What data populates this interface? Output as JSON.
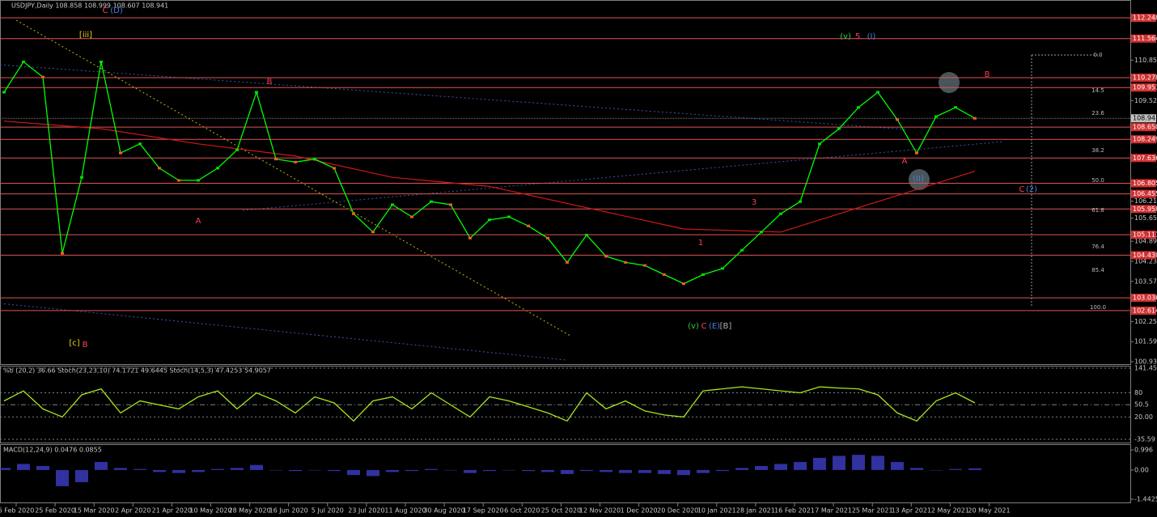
{
  "header": {
    "title": "USDJPY,Daily  108.858 108.999 108.607 108.941"
  },
  "price_chart": {
    "ylim": [
      100.855,
      112.834
    ],
    "ticks": [
      110.855,
      109.525,
      106.215,
      105.655,
      104.895,
      104.235,
      103.575,
      102.255,
      101.595,
      100.935
    ],
    "levels": [
      112.248,
      111.564,
      110.278,
      109.953,
      {
        "value": 108.65,
        "label": "108.650"
      },
      108.249,
      107.636,
      106.805,
      106.455,
      105.958,
      105.111,
      104.438,
      103.036,
      102.614
    ],
    "current": 108.941,
    "close": [
      109.8,
      110.8,
      110.3,
      104.5,
      107,
      110.8,
      107.8,
      108.1,
      107.3,
      106.9,
      106.9,
      107.3,
      107.9,
      109.8,
      107.6,
      107.5,
      107.6,
      107.3,
      105.8,
      105.2,
      106.1,
      105.7,
      106.2,
      106.1,
      105.0,
      105.6,
      105.7,
      105.4,
      105.0,
      104.2,
      105.1,
      104.4,
      104.2,
      104.1,
      103.8,
      103.5,
      103.8,
      104.0,
      104.6,
      105.2,
      105.8,
      106.2,
      108.1,
      108.6,
      109.3,
      109.8,
      108.9,
      107.8,
      109.0,
      109.3,
      108.941
    ],
    "close_color": "#00ff00",
    "ma": [
      108.85,
      108.6,
      108.1,
      107.7,
      107.0,
      106.7,
      106.0,
      105.3,
      105.2,
      106.2,
      107.2
    ],
    "ma_color": "#d01818"
  },
  "fib_levels": [
    "0.0",
    "14.5",
    "23.6",
    "38.2",
    "50.0",
    "61.8",
    "76.4",
    "85.4",
    "100.0"
  ],
  "wave_labels": [
    {
      "text": "(v)",
      "color": "#2ecc40"
    },
    {
      "text": "5",
      "color": "#ff3b5c"
    },
    {
      "text": "(I)",
      "color": "#4a7bd8"
    },
    {
      "text": "B",
      "color": "#ff3b5c"
    },
    {
      "text": "A",
      "color": "#ff3b5c"
    },
    {
      "text": "(II)",
      "color": "#4a7bd8"
    },
    {
      "text": "C",
      "color": "#ff3b5c"
    },
    {
      "text": "(2)",
      "color": "#4a7bd8"
    },
    {
      "text": "(v)",
      "color": "#2ecc40"
    },
    {
      "text": "C",
      "color": "#ff3b5c"
    },
    {
      "text": "(E)",
      "color": "#4a7bd8"
    },
    {
      "text": "[B]",
      "color": "#b0b0b0"
    },
    {
      "text": "B",
      "color": "#ff3b5c"
    },
    {
      "text": "A",
      "color": "#ff3b5c"
    },
    {
      "text": "[c]",
      "color": "#e6d21a"
    },
    {
      "text": "B",
      "color": "#ff3b5c"
    },
    {
      "text": "1",
      "color": "#ff3b5c"
    },
    {
      "text": "3",
      "color": "#ff3b5c"
    },
    {
      "text": "[iii]",
      "color": "#e6d21a"
    },
    {
      "text": "C",
      "color": "#ff3b5c"
    },
    {
      "text": "(D)",
      "color": "#4a7bd8"
    }
  ],
  "dates": [
    "6 Feb 2020",
    "25 Feb 2020",
    "15 Mar 2020",
    "2 Apr 2020",
    "21 Apr 2020",
    "10 May 2020",
    "28 May 2020",
    "16 Jun 2020",
    "5 Jul 2020",
    "23 Jul 2020",
    "11 Aug 2020",
    "30 Aug 2020",
    "17 Sep 2020",
    "6 Oct 2020",
    "25 Oct 2020",
    "12 Nov 2020",
    "1 Dec 2020",
    "20 Dec 2020",
    "10 Jan 2021",
    "28 Jan 2021",
    "16 Feb 2021",
    "7 Mar 2021",
    "25 Mar 2021",
    "13 Apr 2021",
    "2 May 2021",
    "20 May 2021"
  ],
  "oscillator": {
    "title": "%b (20,2) 36.66  Stoch(23,23,10) 74.1721 49.6445  Stoch(14,5,3) 47.4253 54.9057",
    "ylim": [
      -35.59,
      141.45
    ],
    "ticks": [
      141.45,
      80,
      50.5,
      {
        "value": 20,
        "label": "20.00"
      },
      -35.59
    ],
    "values": [
      60,
      85,
      40,
      20,
      75,
      90,
      30,
      60,
      50,
      40,
      70,
      85,
      40,
      80,
      60,
      30,
      70,
      55,
      10,
      60,
      70,
      40,
      80,
      50,
      20,
      70,
      60,
      45,
      30,
      10,
      80,
      40,
      60,
      35,
      25,
      20,
      85,
      90,
      95,
      90,
      85,
      80,
      95,
      92,
      90,
      75,
      30,
      10,
      60,
      80,
      55
    ],
    "color": "#a8e61d"
  },
  "macd": {
    "title": "MACD(12,24,9) 0.0476 0.0855",
    "ylim": [
      -1.4425,
      0.996
    ],
    "ticks": [
      0.996,
      {
        "value": 0,
        "label": "0.00"
      },
      -1.4425
    ],
    "values": [
      0.1,
      0.3,
      0.2,
      -0.8,
      -0.6,
      0.4,
      0.1,
      0.05,
      -0.1,
      -0.15,
      -0.1,
      0.05,
      0.1,
      0.25,
      0.0,
      -0.05,
      0.0,
      -0.05,
      -0.25,
      -0.3,
      -0.1,
      -0.05,
      0.05,
      0.0,
      -0.15,
      -0.05,
      0.0,
      -0.05,
      -0.1,
      -0.2,
      -0.05,
      -0.1,
      -0.15,
      -0.15,
      -0.2,
      -0.25,
      -0.15,
      -0.05,
      0.1,
      0.2,
      0.3,
      0.4,
      0.6,
      0.7,
      0.75,
      0.7,
      0.4,
      0.1,
      0.0,
      0.05,
      0.08
    ],
    "color": "#3d3dc8"
  }
}
